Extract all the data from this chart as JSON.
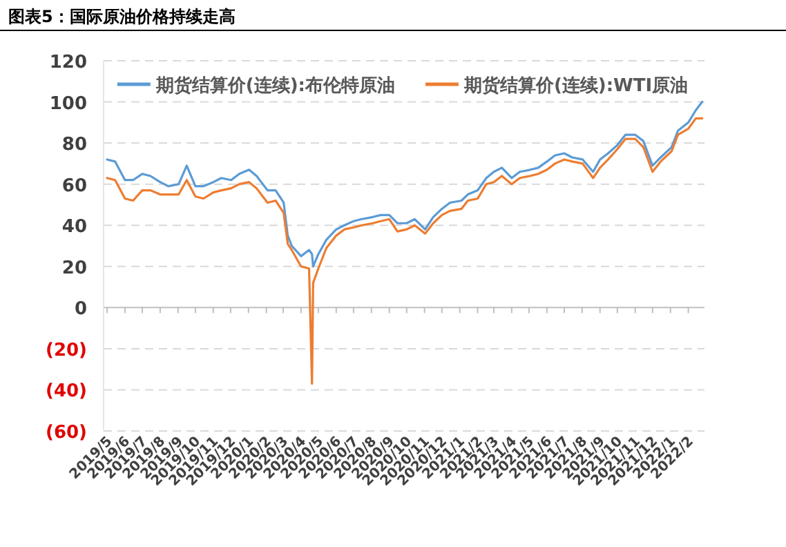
{
  "chart_data": {
    "type": "line",
    "title": "图表5：国际原油价格持续走高",
    "x": [
      "2019-05-01",
      "2019-05-15",
      "2019-06-01",
      "2019-06-15",
      "2019-07-01",
      "2019-07-15",
      "2019-08-01",
      "2019-08-15",
      "2019-09-02",
      "2019-09-16",
      "2019-10-01",
      "2019-10-15",
      "2019-11-01",
      "2019-11-15",
      "2019-12-02",
      "2019-12-16",
      "2020-01-02",
      "2020-01-15",
      "2020-02-03",
      "2020-02-17",
      "2020-03-02",
      "2020-03-09",
      "2020-03-16",
      "2020-04-01",
      "2020-04-15",
      "2020-04-20",
      "2020-04-22",
      "2020-05-01",
      "2020-05-15",
      "2020-06-01",
      "2020-06-15",
      "2020-07-01",
      "2020-07-15",
      "2020-08-03",
      "2020-08-17",
      "2020-09-01",
      "2020-09-15",
      "2020-10-01",
      "2020-10-15",
      "2020-11-02",
      "2020-11-16",
      "2020-12-01",
      "2020-12-15",
      "2021-01-04",
      "2021-01-15",
      "2021-02-01",
      "2021-02-16",
      "2021-03-01",
      "2021-03-15",
      "2021-04-01",
      "2021-04-15",
      "2021-05-03",
      "2021-05-17",
      "2021-06-01",
      "2021-06-15",
      "2021-07-01",
      "2021-07-15",
      "2021-08-02",
      "2021-08-20",
      "2021-09-01",
      "2021-09-15",
      "2021-10-01",
      "2021-10-15",
      "2021-11-01",
      "2021-11-15",
      "2021-12-01",
      "2021-12-15",
      "2022-01-03",
      "2022-01-14",
      "2022-02-01",
      "2022-02-14",
      "2022-02-25"
    ],
    "series": [
      {
        "name": "期货结算价(连续):布伦特原油",
        "color": "#5b9bd5",
        "values": [
          72,
          71,
          62,
          62,
          65,
          64,
          61,
          59,
          60,
          69,
          59,
          59,
          61,
          63,
          62,
          65,
          67,
          64,
          57,
          57,
          51,
          35,
          30,
          25,
          28,
          26,
          20,
          26,
          33,
          38,
          40,
          42,
          43,
          44,
          45,
          45,
          41,
          41,
          43,
          38,
          44,
          48,
          51,
          52,
          55,
          57,
          63,
          66,
          68,
          63,
          66,
          67,
          68,
          71,
          74,
          75,
          73,
          72,
          66,
          72,
          75,
          79,
          84,
          84,
          81,
          69,
          73,
          78,
          86,
          90,
          96,
          100
        ]
      },
      {
        "name": "期货结算价(连续):WTI原油",
        "color": "#ed7d31",
        "values": [
          63,
          62,
          53,
          52,
          57,
          57,
          55,
          55,
          55,
          62,
          54,
          53,
          56,
          57,
          58,
          60,
          61,
          58,
          51,
          52,
          46,
          31,
          28,
          20,
          19,
          -37,
          12,
          19,
          29,
          35,
          38,
          39,
          40,
          41,
          42,
          43,
          37,
          38,
          40,
          36,
          41,
          45,
          47,
          48,
          52,
          53,
          60,
          61,
          64,
          60,
          63,
          64,
          65,
          67,
          70,
          72,
          71,
          70,
          63,
          68,
          72,
          77,
          82,
          82,
          78,
          66,
          71,
          76,
          84,
          87,
          92,
          92
        ]
      }
    ],
    "xlim": [
      "2019-04-25",
      "2022-03-01"
    ],
    "xticks": [
      {
        "value": "2019-05",
        "label": "2019/5"
      },
      {
        "value": "2019-06",
        "label": "2019/6"
      },
      {
        "value": "2019-07",
        "label": "2019/7"
      },
      {
        "value": "2019-08",
        "label": "2019/8"
      },
      {
        "value": "2019-09",
        "label": "2019/9"
      },
      {
        "value": "2019-10",
        "label": "2019/10"
      },
      {
        "value": "2019-11",
        "label": "2019/11"
      },
      {
        "value": "2019-12",
        "label": "2019/12"
      },
      {
        "value": "2020-01",
        "label": "2020/1"
      },
      {
        "value": "2020-02",
        "label": "2020/2"
      },
      {
        "value": "2020-03",
        "label": "2020/3"
      },
      {
        "value": "2020-04",
        "label": "2020/4"
      },
      {
        "value": "2020-05",
        "label": "2020/5"
      },
      {
        "value": "2020-06",
        "label": "2020/6"
      },
      {
        "value": "2020-07",
        "label": "2020/7"
      },
      {
        "value": "2020-08",
        "label": "2020/8"
      },
      {
        "value": "2020-09",
        "label": "2020/9"
      },
      {
        "value": "2020-10",
        "label": "2020/10"
      },
      {
        "value": "2020-11",
        "label": "2020/11"
      },
      {
        "value": "2020-12",
        "label": "2020/12"
      },
      {
        "value": "2021-01",
        "label": "2021/1"
      },
      {
        "value": "2021-02",
        "label": "2021/2"
      },
      {
        "value": "2021-03",
        "label": "2021/3"
      },
      {
        "value": "2021-04",
        "label": "2021/4"
      },
      {
        "value": "2021-05",
        "label": "2021/5"
      },
      {
        "value": "2021-06",
        "label": "2021/6"
      },
      {
        "value": "2021-07",
        "label": "2021/7"
      },
      {
        "value": "2021-08",
        "label": "2021/8"
      },
      {
        "value": "2021-09",
        "label": "2021/9"
      },
      {
        "value": "2021-10",
        "label": "2021/10"
      },
      {
        "value": "2021-11",
        "label": "2021/11"
      },
      {
        "value": "2021-12",
        "label": "2021/12"
      },
      {
        "value": "2022-01",
        "label": "2022/1"
      },
      {
        "value": "2022-02",
        "label": "2022/2"
      }
    ],
    "ylim": [
      -60,
      120
    ],
    "yticks": [
      {
        "value": -60,
        "label": "(60)"
      },
      {
        "value": -40,
        "label": "(40)"
      },
      {
        "value": -20,
        "label": "(20)"
      },
      0,
      20,
      40,
      60,
      80,
      100,
      120
    ],
    "grid": "y",
    "legend": "top",
    "marker": "none",
    "line_style": "solid"
  }
}
